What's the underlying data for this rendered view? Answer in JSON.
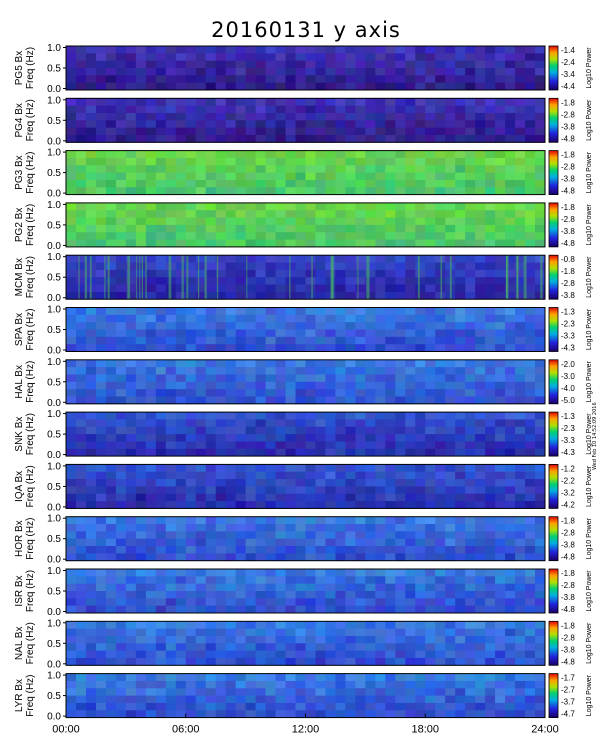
{
  "chart_data": {
    "type": "heatmap",
    "title": "20160131 y axis",
    "x_ticks": [
      "00:00",
      "06:00",
      "12:00",
      "18:00",
      "24:00"
    ],
    "x_range_hours": [
      0,
      24
    ],
    "y_ticks": [
      "0.0",
      "0.5",
      "1.0"
    ],
    "y_range_hz": [
      0,
      1.0
    ],
    "colorbar_label": "Log10 Power",
    "side_note": "Wed Feb 10 14:52:09 2016",
    "panels": [
      {
        "station": "PG5",
        "ylabel1": "PG5 Bx",
        "ylabel2": "Freq (Hz)",
        "cbar": [
          "-1.4",
          "-2.4",
          "-3.4",
          "-4.4"
        ],
        "pattern": "dark"
      },
      {
        "station": "PG4",
        "ylabel1": "PG4 Bx",
        "ylabel2": "Freq (Hz)",
        "cbar": [
          "-1.8",
          "-2.8",
          "-3.8",
          "-4.8"
        ],
        "pattern": "dark"
      },
      {
        "station": "PG3",
        "ylabel1": "PG3 Bx",
        "ylabel2": "Freq (Hz)",
        "cbar": [
          "-1.8",
          "-2.8",
          "-3.8",
          "-4.8"
        ],
        "pattern": "bright"
      },
      {
        "station": "PG2",
        "ylabel1": "PG2 Bx",
        "ylabel2": "Freq (Hz)",
        "cbar": [
          "-1.8",
          "-2.8",
          "-3.8",
          "-4.8"
        ],
        "pattern": "bright"
      },
      {
        "station": "MCM",
        "ylabel1": "MCM Bx",
        "ylabel2": "Freq (Hz)",
        "cbar": [
          "-0.8",
          "-1.8",
          "-2.8",
          "-3.8"
        ],
        "pattern": "streaks"
      },
      {
        "station": "SPA",
        "ylabel1": "SPA Bx",
        "ylabel2": "Freq (Hz)",
        "cbar": [
          "-1.3",
          "-2.3",
          "-3.3",
          "-4.3"
        ],
        "pattern": "mid"
      },
      {
        "station": "HAL",
        "ylabel1": "HAL Bx",
        "ylabel2": "Freq (Hz)",
        "cbar": [
          "-2.0",
          "-3.0",
          "-4.0",
          "-5.0"
        ],
        "pattern": "mid"
      },
      {
        "station": "SNK",
        "ylabel1": "SNK Bx",
        "ylabel2": "Freq (Hz)",
        "cbar": [
          "-1.3",
          "-2.3",
          "-3.3",
          "-4.3"
        ],
        "pattern": "mid-dark"
      },
      {
        "station": "IQA",
        "ylabel1": "IQA Bx",
        "ylabel2": "Freq (Hz)",
        "cbar": [
          "-1.2",
          "-2.2",
          "-3.2",
          "-4.2"
        ],
        "pattern": "mid-dark"
      },
      {
        "station": "HOR",
        "ylabel1": "HOR Bx",
        "ylabel2": "Freq (Hz)",
        "cbar": [
          "-1.8",
          "-2.8",
          "-3.8",
          "-4.8"
        ],
        "pattern": "mid"
      },
      {
        "station": "ISR",
        "ylabel1": "ISR Bx",
        "ylabel2": "Freq (Hz)",
        "cbar": [
          "-1.8",
          "-2.8",
          "-3.8",
          "-4.8"
        ],
        "pattern": "mid"
      },
      {
        "station": "NAL",
        "ylabel1": "NAL Bx",
        "ylabel2": "Freq (Hz)",
        "cbar": [
          "-1.8",
          "-2.8",
          "-3.8",
          "-4.8"
        ],
        "pattern": "mid"
      },
      {
        "station": "LYR",
        "ylabel1": "LYR Bx",
        "ylabel2": "Freq (Hz)",
        "cbar": [
          "-1.7",
          "-2.7",
          "-3.7",
          "-4.7"
        ],
        "pattern": "mid"
      }
    ]
  }
}
